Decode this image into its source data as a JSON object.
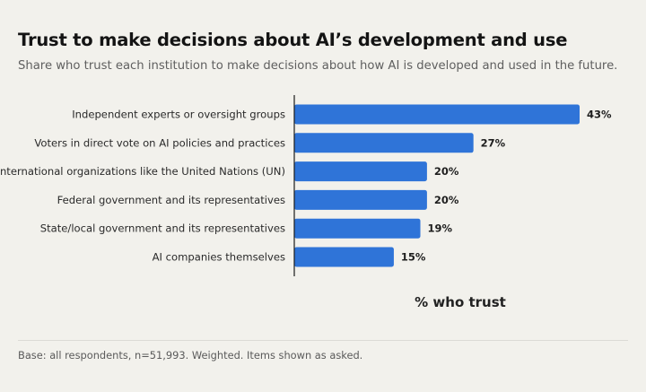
{
  "header": {
    "title": "Trust to make decisions about AI’s development and use",
    "subtitle": "Share who trust each institution to make decisions about how AI is developed and used in the future."
  },
  "footer": {
    "note": "Base: all respondents, n=51,993. Weighted. Items shown as asked."
  },
  "chart_data": {
    "type": "bar",
    "orientation": "horizontal",
    "title": "Trust to make decisions about AI’s development and use",
    "subtitle": "Share who trust each institution to make decisions about how AI is developed and used in the future.",
    "xlabel": "% who trust",
    "ylabel": "",
    "categories": [
      "Independent experts or oversight groups",
      "Voters in direct vote on AI policies and practices",
      "International organizations like the United Nations (UN)",
      "Federal government and its representatives",
      "State/local government and its representatives",
      "AI companies themselves"
    ],
    "values": [
      43,
      27,
      20,
      20,
      19,
      15
    ],
    "value_labels": [
      "43%",
      "27%",
      "20%",
      "20%",
      "19%",
      "15%"
    ],
    "xlim": [
      0,
      43
    ],
    "grid": false,
    "legend": "none",
    "colors": {
      "bar": "#2f74d8",
      "axis": "#1a1a1a",
      "background": "#f2f1ec"
    }
  }
}
